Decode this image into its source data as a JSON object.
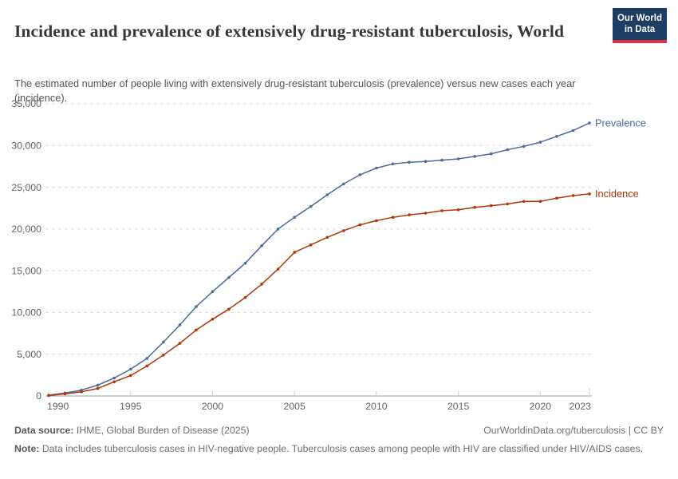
{
  "header": {
    "title": "Incidence and prevalence of extensively drug-resistant tuberculosis, World",
    "subtitle": "The estimated number of people living with extensively drug-resistant tuberculosis (prevalence) versus new cases each year (incidence).",
    "logo": {
      "line1": "Our World",
      "line2": "in Data"
    }
  },
  "chart_data": {
    "type": "line",
    "title": "Incidence and prevalence of extensively drug-resistant tuberculosis, World",
    "xlabel": "",
    "ylabel": "",
    "grid": "horizontal-dashed",
    "legend_position": "end-of-line-labels",
    "ylim": [
      0,
      35000
    ],
    "yticks": [
      0,
      5000,
      10000,
      15000,
      20000,
      25000,
      30000,
      35000
    ],
    "ytick_labels": [
      "0",
      "5,000",
      "10,000",
      "15,000",
      "20,000",
      "25,000",
      "30,000",
      "35,000"
    ],
    "xticks": [
      1990,
      1995,
      2000,
      2005,
      2010,
      2015,
      2020,
      2023
    ],
    "x": [
      1990,
      1991,
      1992,
      1993,
      1994,
      1995,
      1996,
      1997,
      1998,
      1999,
      2000,
      2001,
      2002,
      2003,
      2004,
      2005,
      2006,
      2007,
      2008,
      2009,
      2010,
      2011,
      2012,
      2013,
      2014,
      2015,
      2016,
      2017,
      2018,
      2019,
      2020,
      2021,
      2022,
      2023
    ],
    "series": [
      {
        "name": "Prevalence",
        "color": "#4C6A9C",
        "values": [
          100,
          350,
          700,
          1300,
          2150,
          3200,
          4500,
          6450,
          8500,
          10700,
          12500,
          14200,
          15900,
          18000,
          20000,
          21400,
          22700,
          24100,
          25400,
          26500,
          27300,
          27800,
          28000,
          28100,
          28250,
          28400,
          28700,
          29000,
          29500,
          29900,
          30400,
          31100,
          31800,
          32700
        ]
      },
      {
        "name": "Incidence",
        "color": "#B13507",
        "values": [
          50,
          250,
          500,
          900,
          1700,
          2450,
          3600,
          4900,
          6300,
          7900,
          9200,
          10400,
          11800,
          13400,
          15200,
          17200,
          18100,
          19000,
          19800,
          20500,
          21000,
          21400,
          21700,
          21900,
          22200,
          22300,
          22600,
          22800,
          23000,
          23300,
          23300,
          23700,
          24000,
          24200
        ]
      }
    ]
  },
  "footer": {
    "datasource_label": "Data source:",
    "datasource_value": " IHME, Global Burden of Disease (2025)",
    "attribution": "OurWorldinData.org/tuberculosis | CC BY",
    "note_label": "Note:",
    "note_value": " Data includes tuberculosis cases in HIV-negative people. Tuberculosis cases among people with HIV are classified under HIV/AIDS cases."
  }
}
